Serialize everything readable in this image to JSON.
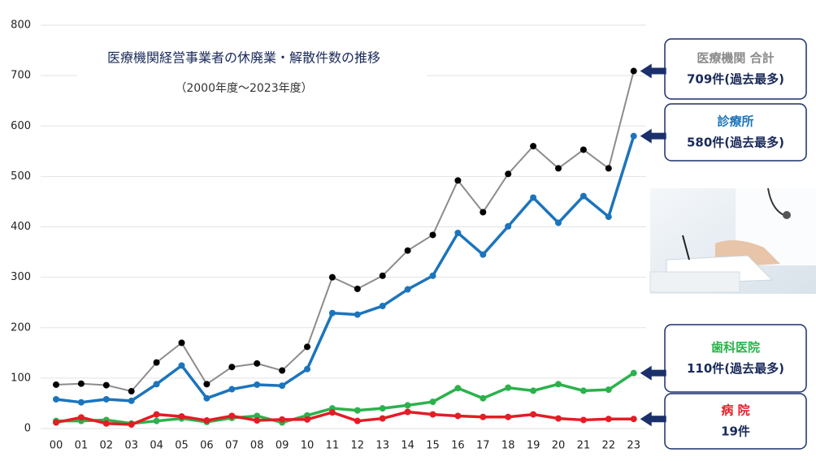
{
  "chart_data": {
    "type": "line",
    "title": "医療機関経営事業者の休廃業・解散件数の推移",
    "subtitle": "（2000年度～2023年度）",
    "categories": [
      "00",
      "01",
      "02",
      "03",
      "04",
      "05",
      "06",
      "07",
      "08",
      "09",
      "10",
      "11",
      "12",
      "13",
      "14",
      "15",
      "16",
      "17",
      "18",
      "19",
      "20",
      "21",
      "22",
      "23"
    ],
    "ylim": [
      0,
      800
    ],
    "yticks": [
      0,
      100,
      200,
      300,
      400,
      500,
      600,
      700,
      800
    ],
    "grid": true,
    "series": [
      {
        "name": "医療機関 合計",
        "color": "#000000",
        "line_color": "#8c8c8c",
        "values": [
          87,
          89,
          86,
          74,
          131,
          170,
          88,
          122,
          129,
          115,
          162,
          300,
          277,
          303,
          353,
          384,
          492,
          429,
          505,
          560,
          516,
          553,
          516,
          709
        ],
        "value_labels": [
          null,
          null,
          null,
          null,
          null,
          null,
          null,
          null,
          null,
          null,
          null,
          null,
          null,
          null,
          null,
          null,
          null,
          null,
          null,
          null,
          null,
          null,
          null,
          "709件(過去最多)"
        ]
      },
      {
        "name": "診療所",
        "color": "#1c74bc",
        "line_color": "#1c74bc",
        "values": [
          58,
          52,
          58,
          55,
          88,
          125,
          60,
          78,
          87,
          85,
          118,
          229,
          226,
          243,
          276,
          303,
          388,
          345,
          401,
          458,
          408,
          461,
          420,
          580
        ],
        "value_labels": [
          null,
          null,
          null,
          null,
          null,
          null,
          null,
          null,
          null,
          null,
          null,
          null,
          null,
          null,
          null,
          null,
          null,
          null,
          null,
          null,
          null,
          null,
          null,
          "580件(過去最多)"
        ]
      },
      {
        "name": "歯科医院",
        "color": "#2bb24c",
        "line_color": "#2bb24c",
        "values": [
          15,
          15,
          17,
          10,
          15,
          20,
          13,
          21,
          25,
          12,
          26,
          40,
          36,
          40,
          46,
          53,
          80,
          60,
          81,
          75,
          88,
          75,
          77,
          110
        ],
        "value_labels": [
          null,
          null,
          null,
          null,
          null,
          null,
          null,
          null,
          null,
          null,
          null,
          null,
          null,
          null,
          null,
          null,
          null,
          null,
          null,
          null,
          null,
          null,
          null,
          "110件(過去最多)"
        ]
      },
      {
        "name": "病 院",
        "color": "#e31d25",
        "line_color": "#e31d25",
        "values": [
          12,
          22,
          10,
          8,
          28,
          24,
          16,
          25,
          16,
          18,
          18,
          32,
          15,
          20,
          33,
          28,
          25,
          23,
          23,
          28,
          20,
          17,
          19,
          19
        ],
        "value_labels": [
          null,
          null,
          null,
          null,
          null,
          null,
          null,
          null,
          null,
          null,
          null,
          null,
          null,
          null,
          null,
          null,
          null,
          null,
          null,
          null,
          null,
          null,
          null,
          "19件"
        ]
      }
    ]
  }
}
